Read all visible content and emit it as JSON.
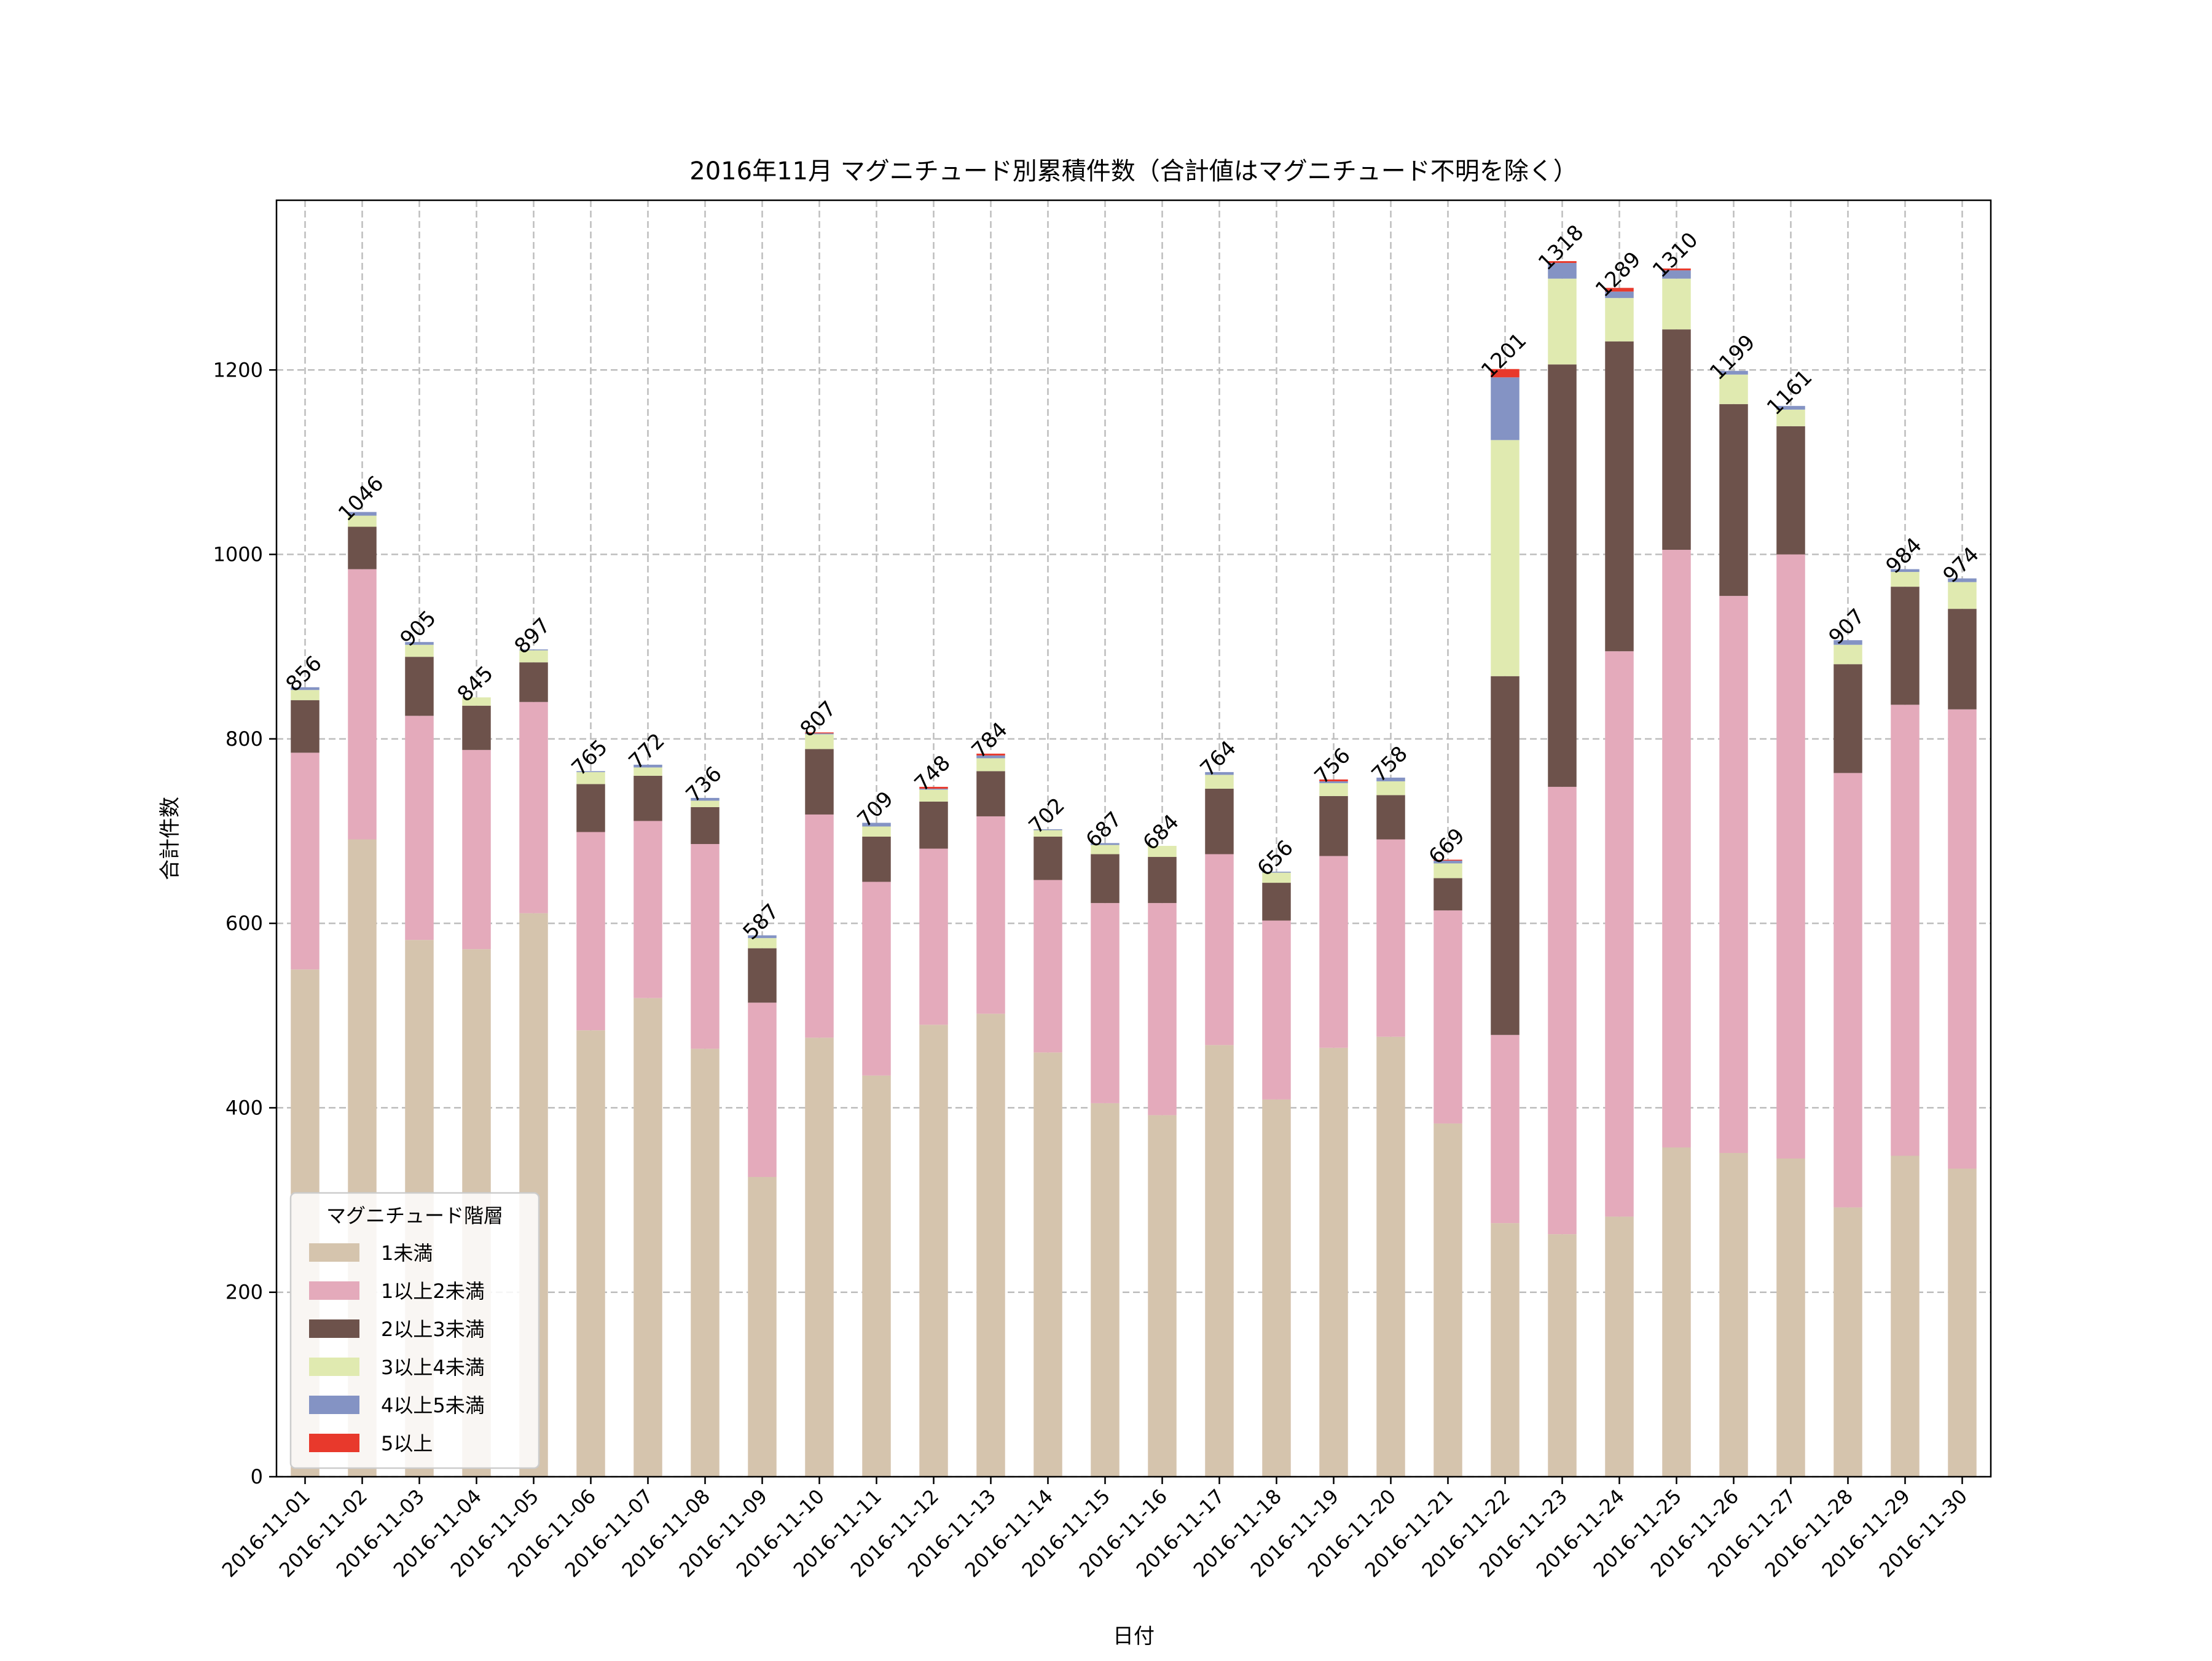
{
  "chart_data": {
    "type": "bar",
    "stacked": true,
    "title": "2016年11月 マグニチュード別累積件数（合計値はマグニチュード不明を除く）",
    "xlabel": "日付",
    "ylabel": "合計件数",
    "ylim": [
      0,
      1384
    ],
    "yticks": [
      0,
      200,
      400,
      600,
      800,
      1000,
      1200
    ],
    "grid": true,
    "legend": {
      "title": "マグニチュード階層",
      "placement": "lower-left"
    },
    "categories": [
      "2016-11-01",
      "2016-11-02",
      "2016-11-03",
      "2016-11-04",
      "2016-11-05",
      "2016-11-06",
      "2016-11-07",
      "2016-11-08",
      "2016-11-09",
      "2016-11-10",
      "2016-11-11",
      "2016-11-12",
      "2016-11-13",
      "2016-11-14",
      "2016-11-15",
      "2016-11-16",
      "2016-11-17",
      "2016-11-18",
      "2016-11-19",
      "2016-11-20",
      "2016-11-21",
      "2016-11-22",
      "2016-11-23",
      "2016-11-24",
      "2016-11-25",
      "2016-11-26",
      "2016-11-27",
      "2016-11-28",
      "2016-11-29",
      "2016-11-30"
    ],
    "totals": [
      856,
      1046,
      905,
      845,
      897,
      765,
      772,
      736,
      587,
      807,
      709,
      748,
      784,
      702,
      687,
      684,
      764,
      656,
      756,
      758,
      669,
      1201,
      1318,
      1289,
      1310,
      1199,
      1161,
      907,
      984,
      974
    ],
    "series": [
      {
        "name": "1未満",
        "color": "#d5c4ad",
        "values": [
          550,
          691,
          582,
          572,
          611,
          484,
          519,
          464,
          325,
          476,
          435,
          490,
          502,
          460,
          405,
          392,
          468,
          409,
          465,
          477,
          383,
          275,
          263,
          282,
          357,
          351,
          345,
          292,
          348,
          334
        ]
      },
      {
        "name": "1以上2未満",
        "color": "#e4aabb",
        "values": [
          235,
          293,
          243,
          216,
          229,
          215,
          192,
          222,
          189,
          242,
          210,
          191,
          214,
          187,
          217,
          230,
          207,
          194,
          208,
          214,
          231,
          204,
          485,
          613,
          648,
          604,
          655,
          471,
          489,
          498
        ]
      },
      {
        "name": "2以上3未満",
        "color": "#6d524b",
        "values": [
          57,
          46,
          64,
          48,
          43,
          52,
          49,
          40,
          59,
          71,
          49,
          51,
          49,
          47,
          53,
          50,
          71,
          41,
          65,
          48,
          35,
          389,
          458,
          336,
          239,
          208,
          139,
          118,
          128,
          109
        ]
      },
      {
        "name": "3以上4未満",
        "color": "#e0eab0",
        "values": [
          11,
          12,
          13,
          9,
          13,
          13,
          9,
          7,
          11,
          16,
          11,
          13,
          14,
          7,
          10,
          12,
          15,
          11,
          14,
          15,
          16,
          256,
          93,
          47,
          55,
          32,
          18,
          21,
          16,
          29
        ]
      },
      {
        "name": "4以上5未満",
        "color": "#8493c4",
        "values": [
          3,
          4,
          3,
          0,
          1,
          1,
          3,
          3,
          3,
          1,
          4,
          1,
          3,
          1,
          2,
          0,
          3,
          1,
          2,
          4,
          3,
          68,
          17,
          7,
          9,
          4,
          4,
          5,
          3,
          4
        ]
      },
      {
        "name": "5以上",
        "color": "#e8392c",
        "values": [
          0,
          0,
          0,
          0,
          0,
          0,
          0,
          0,
          0,
          1,
          0,
          2,
          2,
          0,
          0,
          0,
          0,
          0,
          2,
          0,
          1,
          9,
          2,
          4,
          2,
          0,
          0,
          0,
          0,
          0
        ]
      }
    ]
  }
}
